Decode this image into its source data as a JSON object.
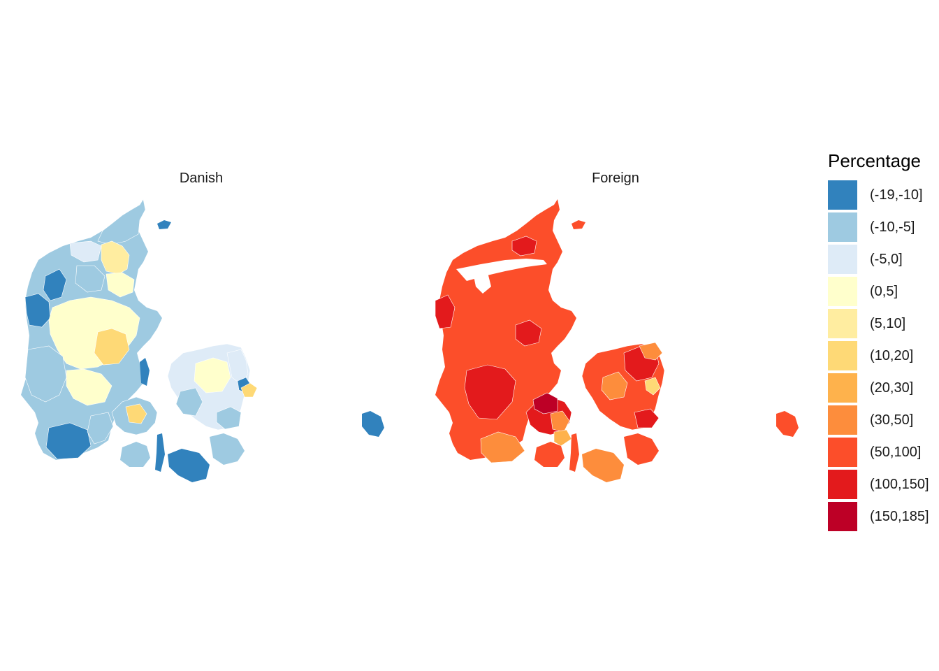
{
  "panels": [
    {
      "title": "Danish"
    },
    {
      "title": "Foreign"
    }
  ],
  "legend": {
    "title": "Percentage",
    "items": [
      {
        "label": "(-19,-10]",
        "color": "#3182bd"
      },
      {
        "label": "(-10,-5]",
        "color": "#9ecae1"
      },
      {
        "label": "(-5,0]",
        "color": "#deebf7"
      },
      {
        "label": "(0,5]",
        "color": "#ffffcc"
      },
      {
        "label": "(5,10]",
        "color": "#ffeda0"
      },
      {
        "label": "(10,20]",
        "color": "#fed976"
      },
      {
        "label": "(20,30]",
        "color": "#feb24c"
      },
      {
        "label": "(30,50]",
        "color": "#fd8d3c"
      },
      {
        "label": "(50,100]",
        "color": "#fc4e2a"
      },
      {
        "label": "(100,150]",
        "color": "#e31a1c"
      },
      {
        "label": "(150,185]",
        "color": "#bd0026"
      }
    ]
  }
}
